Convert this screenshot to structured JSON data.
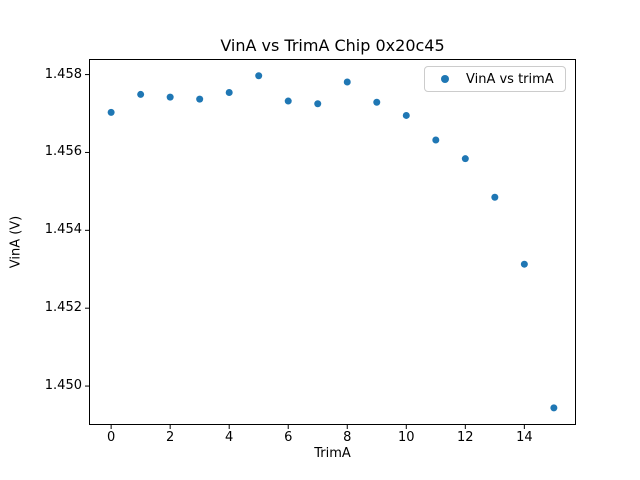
{
  "figure": {
    "background": "#ffffff",
    "text_color": "#000000"
  },
  "chart_data": {
    "type": "scatter",
    "title": "VinA vs TrimA Chip 0x20c45",
    "xlabel": "TrimA",
    "ylabel": "VinA (V)",
    "legend": {
      "label": "VinA vs trimA",
      "position": "upper right"
    },
    "series": [
      {
        "name": "VinA vs trimA",
        "marker": "circle",
        "color": "#1f77b4",
        "x": [
          0,
          1,
          2,
          3,
          4,
          5,
          6,
          7,
          8,
          9,
          10,
          11,
          12,
          13,
          14,
          15
        ],
        "y": [
          1.45703,
          1.45749,
          1.45742,
          1.45737,
          1.45754,
          1.45797,
          1.45732,
          1.45725,
          1.45781,
          1.45729,
          1.45695,
          1.45632,
          1.45584,
          1.45485,
          1.45313,
          1.44944
        ]
      }
    ],
    "xlim": [
      -0.75,
      15.75
    ],
    "ylim": [
      1.449,
      1.4584
    ],
    "xticks": [
      0,
      2,
      4,
      6,
      8,
      10,
      12,
      14
    ],
    "yticks": [
      1.45,
      1.452,
      1.454,
      1.456,
      1.458
    ],
    "ytick_decimals": 3,
    "grid": false
  }
}
